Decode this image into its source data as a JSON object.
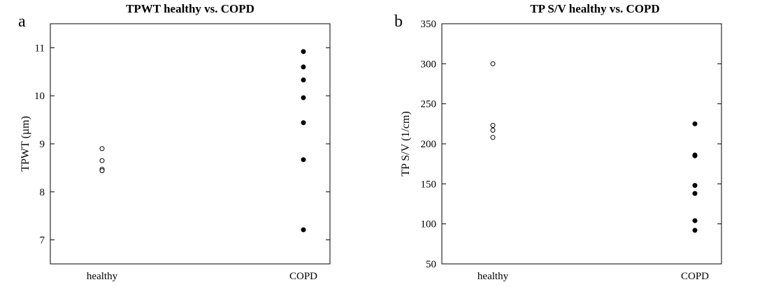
{
  "chart_data": [
    {
      "panel": "a",
      "type": "scatter",
      "title": "TPWT healthy vs. COPD",
      "xlabel": "",
      "ylabel": "TPWT (µm)",
      "categories": [
        "healthy",
        "COPD"
      ],
      "ylim": [
        6.5,
        11.5
      ],
      "yticks": [
        7,
        8,
        9,
        10,
        11
      ],
      "grid": false,
      "series": [
        {
          "name": "healthy",
          "category": "healthy",
          "marker": "open-circle",
          "values": [
            8.9,
            8.65,
            8.47,
            8.44
          ]
        },
        {
          "name": "COPD",
          "category": "COPD",
          "marker": "filled-circle",
          "values": [
            10.92,
            10.6,
            10.33,
            9.96,
            9.44,
            8.67,
            7.21
          ]
        }
      ]
    },
    {
      "panel": "b",
      "type": "scatter",
      "title": "TP S/V healthy vs. COPD",
      "xlabel": "",
      "ylabel": "TP S/V (1/cm)",
      "categories": [
        "healthy",
        "COPD"
      ],
      "ylim": [
        50,
        350
      ],
      "yticks": [
        50,
        100,
        150,
        200,
        250,
        300,
        350
      ],
      "grid": false,
      "series": [
        {
          "name": "healthy",
          "category": "healthy",
          "marker": "open-circle",
          "values": [
            300,
            223,
            217,
            208
          ]
        },
        {
          "name": "COPD",
          "category": "COPD",
          "marker": "filled-circle",
          "values": [
            225,
            186,
            185,
            148,
            138,
            104,
            92
          ]
        }
      ]
    }
  ]
}
